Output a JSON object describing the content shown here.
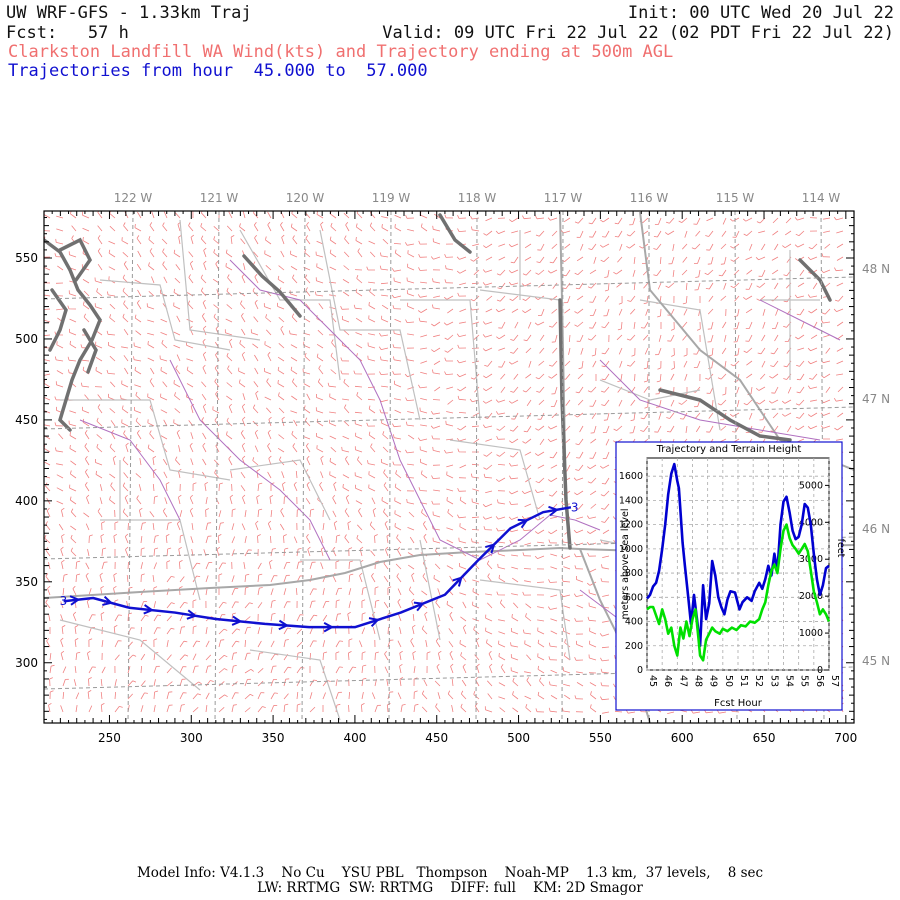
{
  "header": {
    "model_title": "UW WRF-GFS - 1.33km Traj",
    "init": "Init: 00 UTC Wed 20 Jul 22",
    "fcst": "Fcst:   57 h",
    "valid": "Valid: 09 UTC Fri 22 Jul 22 (02 PDT Fri 22 Jul 22)",
    "product": "Clarkston Landfill WA Wind(kts) and Trajectory ending at 500m AGL",
    "traj_hours": "Trajectories from hour  45.000 to  57.000"
  },
  "map": {
    "lon_labels": [
      "122 W",
      "121 W",
      "120 W",
      "119 W",
      "118 W",
      "117 W",
      "116 W",
      "115 W",
      "114 W"
    ],
    "lat_labels": [
      "48 N",
      "47 N",
      "46 N",
      "45 N"
    ],
    "x_ticks": [
      "250",
      "300",
      "350",
      "400",
      "450",
      "500",
      "550",
      "600",
      "650",
      "700"
    ],
    "y_ticks": [
      "550",
      "500",
      "450",
      "400",
      "350",
      "300"
    ],
    "start_marker": "3",
    "end_marker": "3",
    "colors": {
      "wind": "#f08080",
      "trajectory": "#1010d0",
      "borders": "#a8a8a8",
      "counties": "#c0c0c0",
      "rivers": "#b070c0",
      "coast": "#707070",
      "lonlat_grid": "#9a9a9a"
    },
    "trajectory_grid_points": [
      [
        222,
        338
      ],
      [
        240,
        340
      ],
      [
        262,
        334
      ],
      [
        290,
        331
      ],
      [
        315,
        327
      ],
      [
        345,
        324
      ],
      [
        372,
        322
      ],
      [
        400,
        322
      ],
      [
        428,
        331
      ],
      [
        455,
        342
      ],
      [
        475,
        363
      ],
      [
        495,
        383
      ],
      [
        515,
        393
      ],
      [
        532,
        396
      ]
    ]
  },
  "chart_data": {
    "type": "line",
    "title": "Trajectory and Terrain Height",
    "xlabel": "Fcst Hour",
    "ylabel": "meters above sea level",
    "ylabel_right": "feet",
    "x_ticks": [
      "45",
      "46",
      "47",
      "48",
      "49",
      "50",
      "51",
      "52",
      "53",
      "54",
      "55",
      "56",
      "57"
    ],
    "y_ticks": [
      "0",
      "200",
      "400",
      "600",
      "800",
      "1000",
      "1200",
      "1400",
      "1600"
    ],
    "y_ticks_right": [
      "0",
      "1000",
      "2000",
      "3000",
      "4000",
      "5000"
    ],
    "xlim": [
      45,
      57
    ],
    "ylim": [
      0,
      1750
    ],
    "series": [
      {
        "color": "#0000d0",
        "values": [
          [
            45,
            590
          ],
          [
            45.2,
            620
          ],
          [
            45.4,
            690
          ],
          [
            45.6,
            720
          ],
          [
            45.8,
            820
          ],
          [
            46,
            1000
          ],
          [
            46.2,
            1200
          ],
          [
            46.4,
            1450
          ],
          [
            46.6,
            1620
          ],
          [
            46.8,
            1700
          ],
          [
            47,
            1560
          ],
          [
            47.1,
            1500
          ],
          [
            47.2,
            1320
          ],
          [
            47.35,
            1050
          ],
          [
            47.5,
            860
          ],
          [
            47.7,
            620
          ],
          [
            47.9,
            380
          ],
          [
            48.1,
            620
          ],
          [
            48.3,
            420
          ],
          [
            48.5,
            200
          ],
          [
            48.7,
            700
          ],
          [
            48.9,
            420
          ],
          [
            49.1,
            550
          ],
          [
            49.3,
            900
          ],
          [
            49.5,
            780
          ],
          [
            49.7,
            600
          ],
          [
            49.9,
            520
          ],
          [
            50.1,
            460
          ],
          [
            50.3,
            580
          ],
          [
            50.5,
            650
          ],
          [
            50.8,
            640
          ],
          [
            51.1,
            500
          ],
          [
            51.3,
            560
          ],
          [
            51.6,
            600
          ],
          [
            51.9,
            570
          ],
          [
            52.1,
            650
          ],
          [
            52.4,
            720
          ],
          [
            52.6,
            670
          ],
          [
            52.8,
            750
          ],
          [
            53,
            860
          ],
          [
            53.2,
            780
          ],
          [
            53.4,
            960
          ],
          [
            53.6,
            820
          ],
          [
            53.8,
            1200
          ],
          [
            54,
            1390
          ],
          [
            54.2,
            1430
          ],
          [
            54.4,
            1300
          ],
          [
            54.6,
            1150
          ],
          [
            54.8,
            1080
          ],
          [
            55,
            1100
          ],
          [
            55.2,
            1200
          ],
          [
            55.4,
            1370
          ],
          [
            55.6,
            1340
          ],
          [
            55.8,
            1200
          ],
          [
            56,
            960
          ],
          [
            56.2,
            750
          ],
          [
            56.4,
            620
          ],
          [
            56.6,
            700
          ],
          [
            56.8,
            840
          ],
          [
            57,
            860
          ]
        ]
      },
      {
        "color": "#00e000",
        "values": [
          [
            45,
            500
          ],
          [
            45.2,
            520
          ],
          [
            45.4,
            520
          ],
          [
            45.6,
            450
          ],
          [
            45.8,
            380
          ],
          [
            46,
            500
          ],
          [
            46.2,
            420
          ],
          [
            46.4,
            300
          ],
          [
            46.6,
            350
          ],
          [
            46.8,
            200
          ],
          [
            47,
            120
          ],
          [
            47.2,
            350
          ],
          [
            47.4,
            260
          ],
          [
            47.6,
            400
          ],
          [
            47.8,
            280
          ],
          [
            48,
            420
          ],
          [
            48.2,
            500
          ],
          [
            48.4,
            250
          ],
          [
            48.5,
            120
          ],
          [
            48.7,
            80
          ],
          [
            48.9,
            250
          ],
          [
            49.1,
            300
          ],
          [
            49.3,
            350
          ],
          [
            49.5,
            320
          ],
          [
            49.8,
            300
          ],
          [
            50,
            340
          ],
          [
            50.3,
            320
          ],
          [
            50.6,
            350
          ],
          [
            50.9,
            330
          ],
          [
            51.2,
            370
          ],
          [
            51.5,
            360
          ],
          [
            51.8,
            400
          ],
          [
            52.1,
            390
          ],
          [
            52.4,
            420
          ],
          [
            52.6,
            500
          ],
          [
            52.8,
            560
          ],
          [
            53,
            700
          ],
          [
            53.2,
            820
          ],
          [
            53.4,
            870
          ],
          [
            53.6,
            800
          ],
          [
            53.8,
            1000
          ],
          [
            54,
            1150
          ],
          [
            54.2,
            1200
          ],
          [
            54.4,
            1090
          ],
          [
            54.6,
            1030
          ],
          [
            54.8,
            1000
          ],
          [
            55,
            960
          ],
          [
            55.2,
            1000
          ],
          [
            55.4,
            1040
          ],
          [
            55.6,
            980
          ],
          [
            55.8,
            820
          ],
          [
            56,
            650
          ],
          [
            56.2,
            560
          ],
          [
            56.4,
            460
          ],
          [
            56.6,
            500
          ],
          [
            56.8,
            460
          ],
          [
            57,
            400
          ]
        ]
      }
    ]
  },
  "footer": {
    "line1": "Model Info: V4.1.3    No Cu    YSU PBL   Thompson    Noah-MP    1.3 km,  37 levels,    8 sec",
    "line2": "LW: RRTMG  SW: RRTMG    DIFF: full    KM: 2D Smagor"
  }
}
